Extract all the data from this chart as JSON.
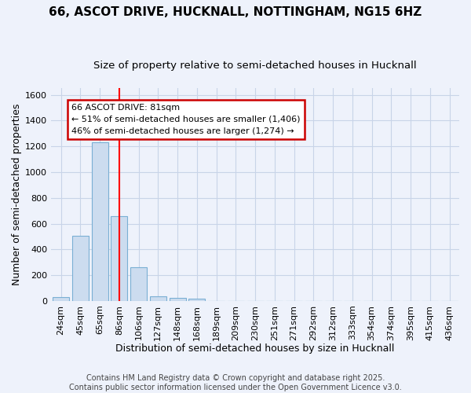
{
  "title1": "66, ASCOT DRIVE, HUCKNALL, NOTTINGHAM, NG15 6HZ",
  "title2": "Size of property relative to semi-detached houses in Hucknall",
  "xlabel": "Distribution of semi-detached houses by size in Hucknall",
  "ylabel": "Number of semi-detached properties",
  "categories": [
    "24sqm",
    "45sqm",
    "65sqm",
    "86sqm",
    "106sqm",
    "127sqm",
    "148sqm",
    "168sqm",
    "189sqm",
    "209sqm",
    "230sqm",
    "251sqm",
    "271sqm",
    "292sqm",
    "312sqm",
    "333sqm",
    "354sqm",
    "374sqm",
    "395sqm",
    "415sqm",
    "436sqm"
  ],
  "values": [
    28,
    507,
    1232,
    660,
    260,
    38,
    22,
    18,
    0,
    0,
    0,
    0,
    0,
    0,
    0,
    0,
    0,
    0,
    0,
    0,
    0
  ],
  "bar_color": "#ccdcef",
  "bar_edge_color": "#7aafd4",
  "grid_color": "#c8d4e8",
  "background_color": "#eef2fb",
  "red_line_x": 3,
  "annotation_text": "66 ASCOT DRIVE: 81sqm\n← 51% of semi-detached houses are smaller (1,406)\n46% of semi-detached houses are larger (1,274) →",
  "annotation_box_color": "#ffffff",
  "annotation_box_edge": "#cc0000",
  "ylim": [
    0,
    1650
  ],
  "yticks": [
    0,
    200,
    400,
    600,
    800,
    1000,
    1200,
    1400,
    1600
  ],
  "footer_text": "Contains HM Land Registry data © Crown copyright and database right 2025.\nContains public sector information licensed under the Open Government Licence v3.0.",
  "title1_fontsize": 11,
  "title2_fontsize": 9.5,
  "axis_label_fontsize": 9,
  "tick_fontsize": 8,
  "annot_fontsize": 8,
  "footer_fontsize": 7
}
